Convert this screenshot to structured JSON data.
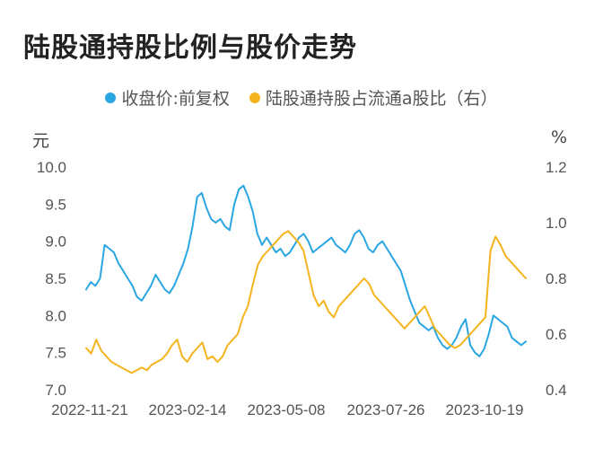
{
  "chart_data": {
    "type": "line",
    "title": "陆股通持股比例与股价走势",
    "left_unit": "元",
    "right_unit": "%",
    "y_left": {
      "lim": [
        7.0,
        10.0
      ],
      "ticks": [
        "7.0",
        "7.5",
        "8.0",
        "8.5",
        "9.0",
        "9.5",
        "10.0"
      ]
    },
    "y_right": {
      "lim": [
        0.4,
        1.2
      ],
      "ticks": [
        "0.4",
        "0.6",
        "0.8",
        "1.0",
        "1.2"
      ]
    },
    "x_ticks": [
      "2022-11-21",
      "2023-02-14",
      "2023-05-08",
      "2023-07-26",
      "2023-10-19"
    ],
    "legend_position": "top",
    "grid": false,
    "series": [
      {
        "name": "收盘价:前复权",
        "axis": "left",
        "color": "#2AA6E2",
        "values": [
          8.35,
          8.45,
          8.4,
          8.5,
          8.95,
          8.9,
          8.85,
          8.7,
          8.6,
          8.5,
          8.4,
          8.25,
          8.2,
          8.3,
          8.4,
          8.55,
          8.45,
          8.35,
          8.3,
          8.4,
          8.55,
          8.7,
          8.9,
          9.2,
          9.6,
          9.65,
          9.45,
          9.3,
          9.25,
          9.3,
          9.2,
          9.15,
          9.5,
          9.7,
          9.75,
          9.6,
          9.4,
          9.1,
          8.95,
          9.05,
          8.95,
          8.85,
          8.9,
          8.8,
          8.85,
          8.95,
          9.05,
          9.1,
          9.0,
          8.85,
          8.9,
          8.95,
          9.0,
          9.05,
          8.95,
          8.9,
          8.85,
          8.95,
          9.1,
          9.15,
          9.05,
          8.9,
          8.85,
          8.95,
          9.0,
          8.9,
          8.8,
          8.7,
          8.6,
          8.4,
          8.2,
          8.05,
          7.9,
          7.85,
          7.8,
          7.85,
          7.7,
          7.6,
          7.55,
          7.6,
          7.7,
          7.85,
          7.95,
          7.6,
          7.5,
          7.45,
          7.55,
          7.75,
          8.0,
          7.95,
          7.9,
          7.85,
          7.7,
          7.65,
          7.6,
          7.65
        ]
      },
      {
        "name": "陆股通持股占流通a股比（右）",
        "axis": "right",
        "color": "#F5B41E",
        "values": [
          0.55,
          0.53,
          0.58,
          0.54,
          0.52,
          0.5,
          0.49,
          0.48,
          0.47,
          0.46,
          0.47,
          0.48,
          0.47,
          0.49,
          0.5,
          0.51,
          0.53,
          0.56,
          0.58,
          0.52,
          0.5,
          0.53,
          0.55,
          0.57,
          0.51,
          0.52,
          0.5,
          0.52,
          0.56,
          0.58,
          0.6,
          0.66,
          0.7,
          0.78,
          0.85,
          0.88,
          0.9,
          0.92,
          0.94,
          0.96,
          0.97,
          0.95,
          0.93,
          0.9,
          0.82,
          0.74,
          0.7,
          0.72,
          0.68,
          0.66,
          0.7,
          0.72,
          0.74,
          0.76,
          0.78,
          0.8,
          0.78,
          0.74,
          0.72,
          0.7,
          0.68,
          0.66,
          0.64,
          0.62,
          0.64,
          0.66,
          0.68,
          0.7,
          0.66,
          0.62,
          0.6,
          0.58,
          0.56,
          0.55,
          0.56,
          0.58,
          0.6,
          0.62,
          0.64,
          0.66,
          0.9,
          0.95,
          0.92,
          0.88,
          0.86,
          0.84,
          0.82,
          0.8
        ]
      }
    ]
  }
}
